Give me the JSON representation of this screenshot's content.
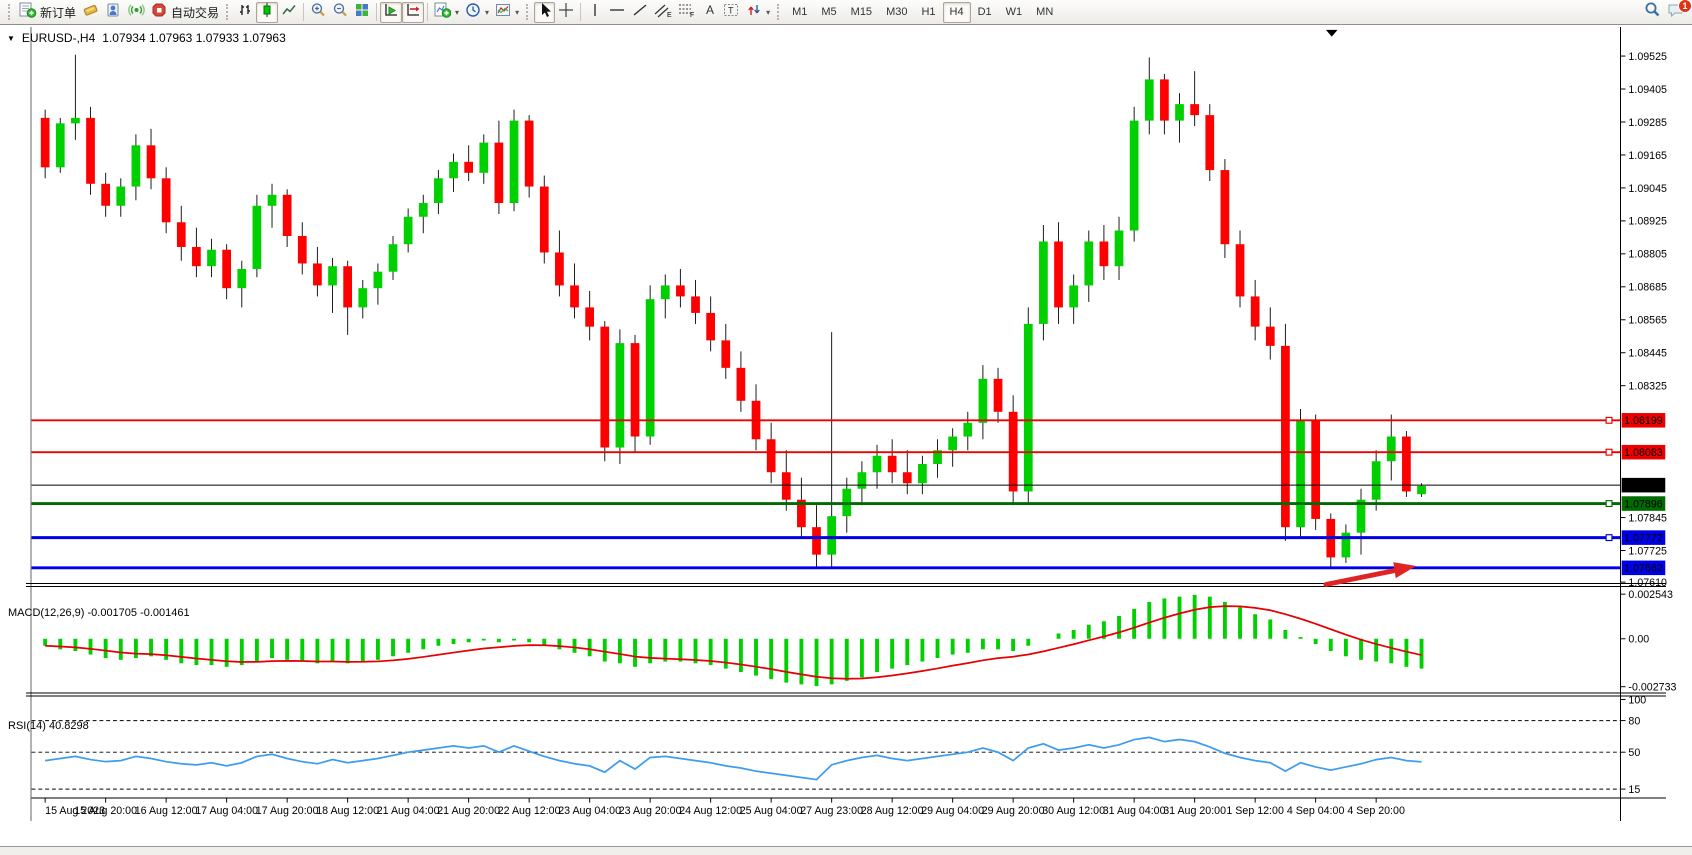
{
  "toolbar": {
    "new_order_label": "新订单",
    "autotrading_label": "自动交易",
    "timeframes": [
      "M1",
      "M5",
      "M15",
      "M30",
      "H1",
      "H4",
      "D1",
      "W1",
      "MN"
    ],
    "active_timeframe": "H4",
    "notification_count": "1"
  },
  "chart": {
    "title_symbol": "EURUSD-,H4",
    "title_ohlc": "1.07934 1.07963 1.07933 1.07963"
  },
  "chart_data": {
    "type": "candlestick",
    "symbol": "EURUSD-",
    "timeframe": "H4",
    "title": "EURUSD-,H4  1.07934 1.07963 1.07933 1.07963",
    "current_bar": {
      "open": "1.07934",
      "high": "1.07963",
      "low": "1.07933",
      "close": "1.07963"
    },
    "colors": {
      "candle_up": "#00d000",
      "candle_down": "#ff0000",
      "wick": "#151515",
      "background": "#ffffff",
      "axis": "#000000"
    },
    "price_axis": {
      "ticks": [
        "1.09525",
        "1.09405",
        "1.09285",
        "1.09165",
        "1.09045",
        "1.08925",
        "1.08805",
        "1.08685",
        "1.08565",
        "1.08445",
        "1.08325",
        "1.07845",
        "1.07725",
        "1.07610"
      ]
    },
    "levels": [
      {
        "price": 1.08199,
        "label": "1.08199",
        "color": "#ee0000",
        "width": 2,
        "handle": true,
        "kind": "resistance-line"
      },
      {
        "price": 1.08083,
        "label": "1.08083",
        "color": "#ee0000",
        "width": 2,
        "handle": true,
        "kind": "resistance-line"
      },
      {
        "price": 1.07963,
        "label": "1.07963",
        "color": "#000000",
        "width": 1,
        "handle": false,
        "kind": "bid-price-line"
      },
      {
        "price": 1.07896,
        "label": "1.07896",
        "color": "#006b00",
        "width": 3,
        "handle": true,
        "kind": "support-line"
      },
      {
        "price": 1.07772,
        "label": "1.07772",
        "color": "#0000e6",
        "width": 3,
        "handle": true,
        "kind": "support-line"
      },
      {
        "price": 1.07662,
        "label": "1.07662",
        "color": "#0000e6",
        "width": 3,
        "handle": false,
        "kind": "support-line"
      }
    ],
    "time_labels": [
      "15 Aug 2023",
      "15 Aug 20:00",
      "16 Aug 12:00",
      "17 Aug 04:00",
      "17 Aug 20:00",
      "18 Aug 12:00",
      "21 Aug 04:00",
      "21 Aug 20:00",
      "22 Aug 12:00",
      "23 Aug 04:00",
      "23 Aug 20:00",
      "24 Aug 12:00",
      "25 Aug 04:00",
      "27 Aug 23:00",
      "28 Aug 12:00",
      "29 Aug 04:00",
      "29 Aug 20:00",
      "30 Aug 12:00",
      "31 Aug 04:00",
      "31 Aug 20:00",
      "1 Sep 12:00",
      "4 Sep 04:00",
      "4 Sep 20:00"
    ],
    "candles": [
      [
        1.093,
        1.0933,
        1.0908,
        1.0912
      ],
      [
        1.0912,
        1.093,
        1.091,
        1.0928
      ],
      [
        1.0928,
        1.0953,
        1.0922,
        1.093
      ],
      [
        1.093,
        1.0934,
        1.0902,
        1.0906
      ],
      [
        1.0906,
        1.091,
        1.0894,
        1.0898
      ],
      [
        1.0898,
        1.0908,
        1.0894,
        1.0905
      ],
      [
        1.0905,
        1.0924,
        1.09,
        1.092
      ],
      [
        1.092,
        1.0926,
        1.0904,
        1.0908
      ],
      [
        1.0908,
        1.0912,
        1.0888,
        1.0892
      ],
      [
        1.0892,
        1.0898,
        1.0878,
        1.0883
      ],
      [
        1.0883,
        1.089,
        1.0872,
        1.0876
      ],
      [
        1.0876,
        1.0886,
        1.0872,
        1.0882
      ],
      [
        1.0882,
        1.0884,
        1.0864,
        1.0868
      ],
      [
        1.0868,
        1.0878,
        1.0861,
        1.0875
      ],
      [
        1.0875,
        1.0902,
        1.0872,
        1.0898
      ],
      [
        1.0898,
        1.0906,
        1.089,
        1.0902
      ],
      [
        1.0902,
        1.0904,
        1.0883,
        1.0887
      ],
      [
        1.0887,
        1.0892,
        1.0873,
        1.0877
      ],
      [
        1.0877,
        1.0883,
        1.0865,
        1.0869
      ],
      [
        1.0869,
        1.0879,
        1.0859,
        1.0876
      ],
      [
        1.0876,
        1.0878,
        1.0851,
        1.0861
      ],
      [
        1.0861,
        1.0871,
        1.0857,
        1.0868
      ],
      [
        1.0868,
        1.0877,
        1.0862,
        1.0874
      ],
      [
        1.0874,
        1.0887,
        1.0871,
        1.0884
      ],
      [
        1.0884,
        1.0897,
        1.0881,
        1.0894
      ],
      [
        1.0894,
        1.0902,
        1.0888,
        1.0899
      ],
      [
        1.0899,
        1.0911,
        1.0895,
        1.0908
      ],
      [
        1.0908,
        1.0917,
        1.0903,
        1.0914
      ],
      [
        1.0914,
        1.092,
        1.0907,
        1.091
      ],
      [
        1.091,
        1.0924,
        1.0906,
        1.0921
      ],
      [
        1.0921,
        1.0929,
        1.0895,
        1.0899
      ],
      [
        1.0899,
        1.0933,
        1.0896,
        1.0929
      ],
      [
        1.0929,
        1.0931,
        1.0901,
        1.0905
      ],
      [
        1.0905,
        1.0909,
        1.0877,
        1.0881
      ],
      [
        1.0881,
        1.0889,
        1.0865,
        1.0869
      ],
      [
        1.0869,
        1.0877,
        1.0857,
        1.0861
      ],
      [
        1.0861,
        1.0867,
        1.0849,
        1.0854
      ],
      [
        1.0854,
        1.0856,
        1.0805,
        1.081
      ],
      [
        1.081,
        1.0853,
        1.0804,
        1.0848
      ],
      [
        1.0848,
        1.0851,
        1.0808,
        1.0814
      ],
      [
        1.0814,
        1.0869,
        1.0811,
        1.0864
      ],
      [
        1.0864,
        1.0873,
        1.0857,
        1.0869
      ],
      [
        1.0869,
        1.0875,
        1.0861,
        1.0865
      ],
      [
        1.0865,
        1.0871,
        1.0855,
        1.0859
      ],
      [
        1.0859,
        1.0865,
        1.0845,
        1.0849
      ],
      [
        1.0849,
        1.0855,
        1.0835,
        1.0839
      ],
      [
        1.0839,
        1.0845,
        1.0823,
        1.0827
      ],
      [
        1.0827,
        1.0833,
        1.0809,
        1.0813
      ],
      [
        1.0813,
        1.0819,
        1.0797,
        1.0801
      ],
      [
        1.0801,
        1.0809,
        1.0787,
        1.0791
      ],
      [
        1.0791,
        1.0799,
        1.0777,
        1.0781
      ],
      [
        1.0781,
        1.0789,
        1.0766,
        1.0771
      ],
      [
        1.0771,
        1.0852,
        1.0766,
        1.0785
      ],
      [
        1.0785,
        1.0799,
        1.0779,
        1.0795
      ],
      [
        1.0795,
        1.0805,
        1.0789,
        1.0801
      ],
      [
        1.0801,
        1.0811,
        1.0795,
        1.0807
      ],
      [
        1.0807,
        1.0813,
        1.0797,
        1.0801
      ],
      [
        1.0801,
        1.0809,
        1.0793,
        1.0797
      ],
      [
        1.0797,
        1.0807,
        1.0793,
        1.0804
      ],
      [
        1.0804,
        1.0813,
        1.0799,
        1.0809
      ],
      [
        1.0809,
        1.0817,
        1.0803,
        1.0814
      ],
      [
        1.0814,
        1.0823,
        1.0809,
        1.0819
      ],
      [
        1.0819,
        1.084,
        1.0813,
        1.0835
      ],
      [
        1.0835,
        1.0839,
        1.0819,
        1.0823
      ],
      [
        1.0823,
        1.0829,
        1.0789,
        1.0794
      ],
      [
        1.0794,
        1.0861,
        1.079,
        1.0855
      ],
      [
        1.0855,
        1.0891,
        1.0849,
        1.0885
      ],
      [
        1.0885,
        1.0892,
        1.0855,
        1.0861
      ],
      [
        1.0861,
        1.0873,
        1.0855,
        1.0869
      ],
      [
        1.0869,
        1.0889,
        1.0863,
        1.0885
      ],
      [
        1.0885,
        1.0891,
        1.0871,
        1.0876
      ],
      [
        1.0876,
        1.0894,
        1.0871,
        1.0889
      ],
      [
        1.0889,
        1.0934,
        1.0885,
        1.0929
      ],
      [
        1.0929,
        1.0952,
        1.0924,
        1.0944
      ],
      [
        1.0944,
        1.0946,
        1.0924,
        1.0929
      ],
      [
        1.0929,
        1.0939,
        1.0921,
        1.0935
      ],
      [
        1.0935,
        1.0947,
        1.0927,
        1.0931
      ],
      [
        1.0931,
        1.0935,
        1.0907,
        1.0911
      ],
      [
        1.0911,
        1.0915,
        1.0879,
        1.0884
      ],
      [
        1.0884,
        1.0889,
        1.0861,
        1.0865
      ],
      [
        1.0865,
        1.0871,
        1.0849,
        1.0854
      ],
      [
        1.0854,
        1.0861,
        1.0842,
        1.0847
      ],
      [
        1.0847,
        1.0855,
        1.0776,
        1.0781
      ],
      [
        1.0781,
        1.0824,
        1.0777,
        1.082
      ],
      [
        1.082,
        1.0822,
        1.078,
        1.0784
      ],
      [
        1.0784,
        1.0786,
        1.0766,
        1.077
      ],
      [
        1.077,
        1.0782,
        1.0768,
        1.0779
      ],
      [
        1.0779,
        1.0795,
        1.0771,
        1.0791
      ],
      [
        1.0791,
        1.0809,
        1.0787,
        1.0805
      ],
      [
        1.0805,
        1.0822,
        1.0798,
        1.0814
      ],
      [
        1.0814,
        1.0816,
        1.0792,
        1.0794
      ],
      [
        1.0793,
        1.0797,
        1.0792,
        1.0796
      ]
    ],
    "indicators": {
      "macd": {
        "name": "MACD(12,26,9)",
        "value_main": "-0.001705",
        "value_signal": "-0.001461",
        "axis": [
          "0.002543",
          "0.00",
          "-0.002733"
        ],
        "colors": {
          "histogram": "#00d000",
          "signal": "#e60000"
        },
        "histogram": [
          -0.0004,
          -0.0006,
          -0.0007,
          -0.0009,
          -0.0011,
          -0.0012,
          -0.0011,
          -0.001,
          -0.0012,
          -0.0014,
          -0.0015,
          -0.0015,
          -0.0016,
          -0.0015,
          -0.0013,
          -0.0011,
          -0.0012,
          -0.0013,
          -0.0014,
          -0.0013,
          -0.0014,
          -0.0013,
          -0.0012,
          -0.001,
          -0.0008,
          -0.0006,
          -0.0004,
          -0.0003,
          -0.0002,
          -0.0001,
          -0.0002,
          -0.0001,
          -0.0002,
          -0.0004,
          -0.0006,
          -0.0008,
          -0.001,
          -0.0013,
          -0.0014,
          -0.0016,
          -0.0014,
          -0.0013,
          -0.0013,
          -0.0014,
          -0.0015,
          -0.0017,
          -0.0019,
          -0.0021,
          -0.0023,
          -0.0025,
          -0.0026,
          -0.0027,
          -0.0026,
          -0.0024,
          -0.0022,
          -0.0019,
          -0.0017,
          -0.0015,
          -0.0013,
          -0.0011,
          -0.0009,
          -0.0008,
          -0.0006,
          -0.0006,
          -0.0007,
          -0.0004,
          0.0,
          0.0003,
          0.0005,
          0.0008,
          0.001,
          0.0013,
          0.0017,
          0.0021,
          0.0023,
          0.0024,
          0.0025,
          0.0024,
          0.0021,
          0.0018,
          0.0014,
          0.0011,
          0.0005,
          0.0001,
          -0.0003,
          -0.0007,
          -0.001,
          -0.0012,
          -0.0013,
          -0.0014,
          -0.0016,
          -0.0017
        ]
      },
      "rsi": {
        "name": "RSI(14)",
        "value": "40.8298",
        "axis": [
          "100",
          "80",
          "50",
          "15"
        ],
        "levels": [
          80,
          50,
          15
        ],
        "color": "#3e9cef",
        "values": [
          42,
          44,
          46,
          43,
          41,
          42,
          46,
          44,
          41,
          39,
          38,
          40,
          37,
          40,
          46,
          48,
          44,
          41,
          39,
          43,
          40,
          42,
          44,
          47,
          50,
          52,
          54,
          56,
          54,
          56,
          50,
          56,
          51,
          46,
          42,
          39,
          37,
          31,
          42,
          34,
          45,
          46,
          44,
          42,
          40,
          37,
          35,
          32,
          30,
          28,
          26,
          24,
          38,
          42,
          45,
          47,
          44,
          42,
          44,
          46,
          48,
          50,
          54,
          50,
          42,
          54,
          58,
          52,
          54,
          57,
          54,
          57,
          62,
          64,
          60,
          62,
          60,
          55,
          49,
          45,
          42,
          40,
          32,
          40,
          36,
          33,
          36,
          39,
          43,
          45,
          42,
          40.8
        ]
      }
    },
    "annotations": {
      "arrow_color": "#e02424"
    }
  }
}
